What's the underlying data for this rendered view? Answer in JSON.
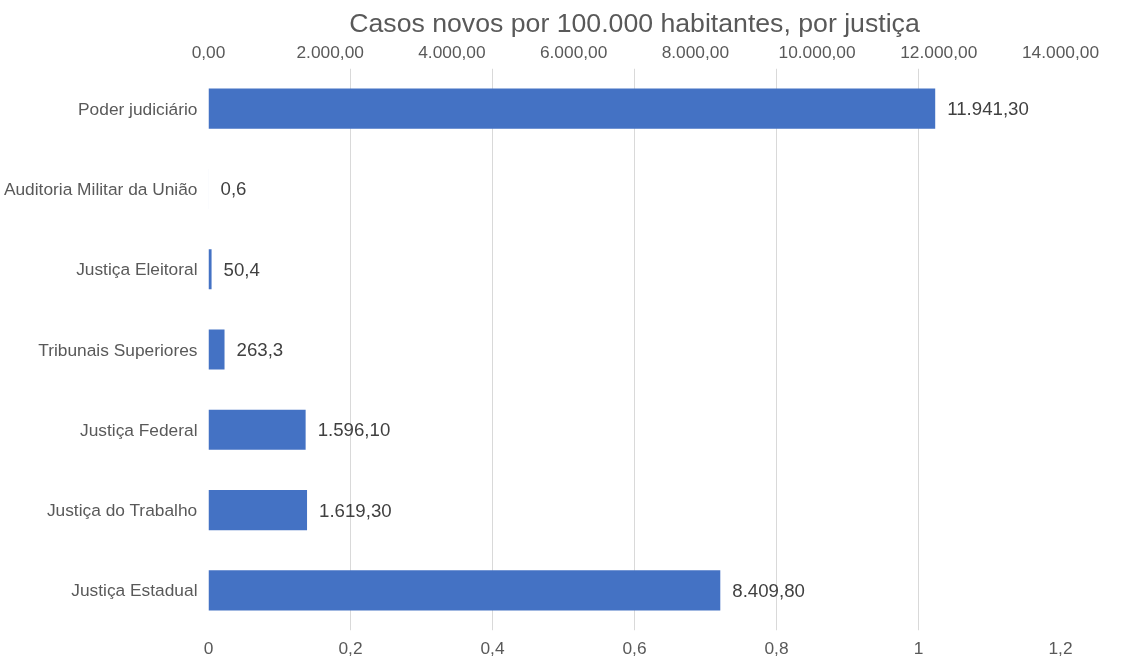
{
  "chart_data": {
    "type": "bar",
    "orientation": "horizontal",
    "title": "Casos novos por 100.000 habitantes, por justiça",
    "categories": [
      "Poder judiciário",
      "Auditoria Militar da União",
      "Justiça Eleitoral",
      "Tribunais Superiores",
      "Justiça Federal",
      "Justiça do Trabalho",
      "Justiça Estadual"
    ],
    "series": [
      {
        "color": "#4472c4",
        "axis": "x2",
        "values": [
          11941.3,
          0.6,
          50.4,
          263.3,
          1596.1,
          1619.3,
          8409.8
        ],
        "value_labels": [
          "11.941,30",
          "0,6",
          "50,4",
          "263,3",
          "1.596,10",
          "1.619,30",
          "8.409,80"
        ]
      }
    ],
    "xlim": [
      0,
      1.2
    ],
    "xticks": [
      0,
      {
        "value": 0.2,
        "label": "0,2"
      },
      {
        "value": 0.4,
        "label": "0,4"
      },
      {
        "value": 0.6,
        "label": "0,6"
      },
      {
        "value": 0.8,
        "label": "0,8"
      },
      1,
      {
        "value": 1.2,
        "label": "1,2"
      }
    ],
    "x2lim": [
      0,
      14000
    ],
    "x2ticks": [
      {
        "value": 0,
        "label": "0,00"
      },
      {
        "value": 2000,
        "label": "2.000,00"
      },
      {
        "value": 4000,
        "label": "4.000,00"
      },
      {
        "value": 6000,
        "label": "6.000,00"
      },
      {
        "value": 8000,
        "label": "8.000,00"
      },
      {
        "value": 10000,
        "label": "10.000,00"
      },
      {
        "value": 12000,
        "label": "12.000,00"
      },
      {
        "value": 14000,
        "label": "14.000,00"
      }
    ],
    "grid": "x"
  }
}
